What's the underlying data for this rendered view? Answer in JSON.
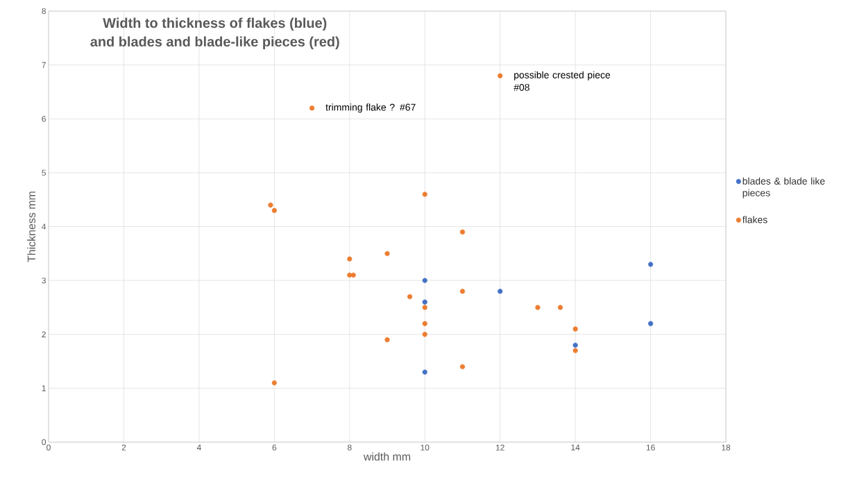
{
  "chart_data": {
    "type": "scatter",
    "title": "Width to thickness of flakes (blue)\nand blades and blade-like pieces (red)",
    "xlabel": "width mm",
    "ylabel": "Thickness mm",
    "series": [
      {
        "name": "blades & blade like pieces",
        "color": "#4472c4",
        "x": [
          10,
          10,
          10,
          12,
          14,
          16,
          16
        ],
        "values": [
          3.0,
          2.6,
          1.3,
          2.8,
          1.8,
          3.3,
          2.2
        ]
      },
      {
        "name": "flakes",
        "color": "#ed7d31",
        "x": [
          5.9,
          6,
          6,
          7,
          8,
          8,
          8.1,
          9,
          9,
          9.6,
          10,
          10,
          10,
          10,
          11,
          11,
          11,
          12,
          13,
          13.6,
          14,
          14
        ],
        "values": [
          4.4,
          4.3,
          1.1,
          6.2,
          3.4,
          3.1,
          3.1,
          3.5,
          1.9,
          2.7,
          4.6,
          2.5,
          2.2,
          2.0,
          3.9,
          2.8,
          1.4,
          6.8,
          2.5,
          2.5,
          2.1,
          1.7
        ]
      }
    ],
    "annotations": [
      {
        "text": "trimming flake ? #67",
        "x": 7,
        "y": 6.2
      },
      {
        "text": "possible crested piece #08",
        "x": 12,
        "y": 6.8
      }
    ],
    "xlim": [
      0,
      18
    ],
    "ylim": [
      0,
      8
    ],
    "xticks": [
      0,
      2,
      4,
      6,
      8,
      10,
      12,
      14,
      16,
      18
    ],
    "yticks": [
      0,
      1,
      2,
      3,
      4,
      5,
      6,
      7,
      8
    ],
    "grid": true,
    "legend": "right",
    "marker": "circle"
  }
}
